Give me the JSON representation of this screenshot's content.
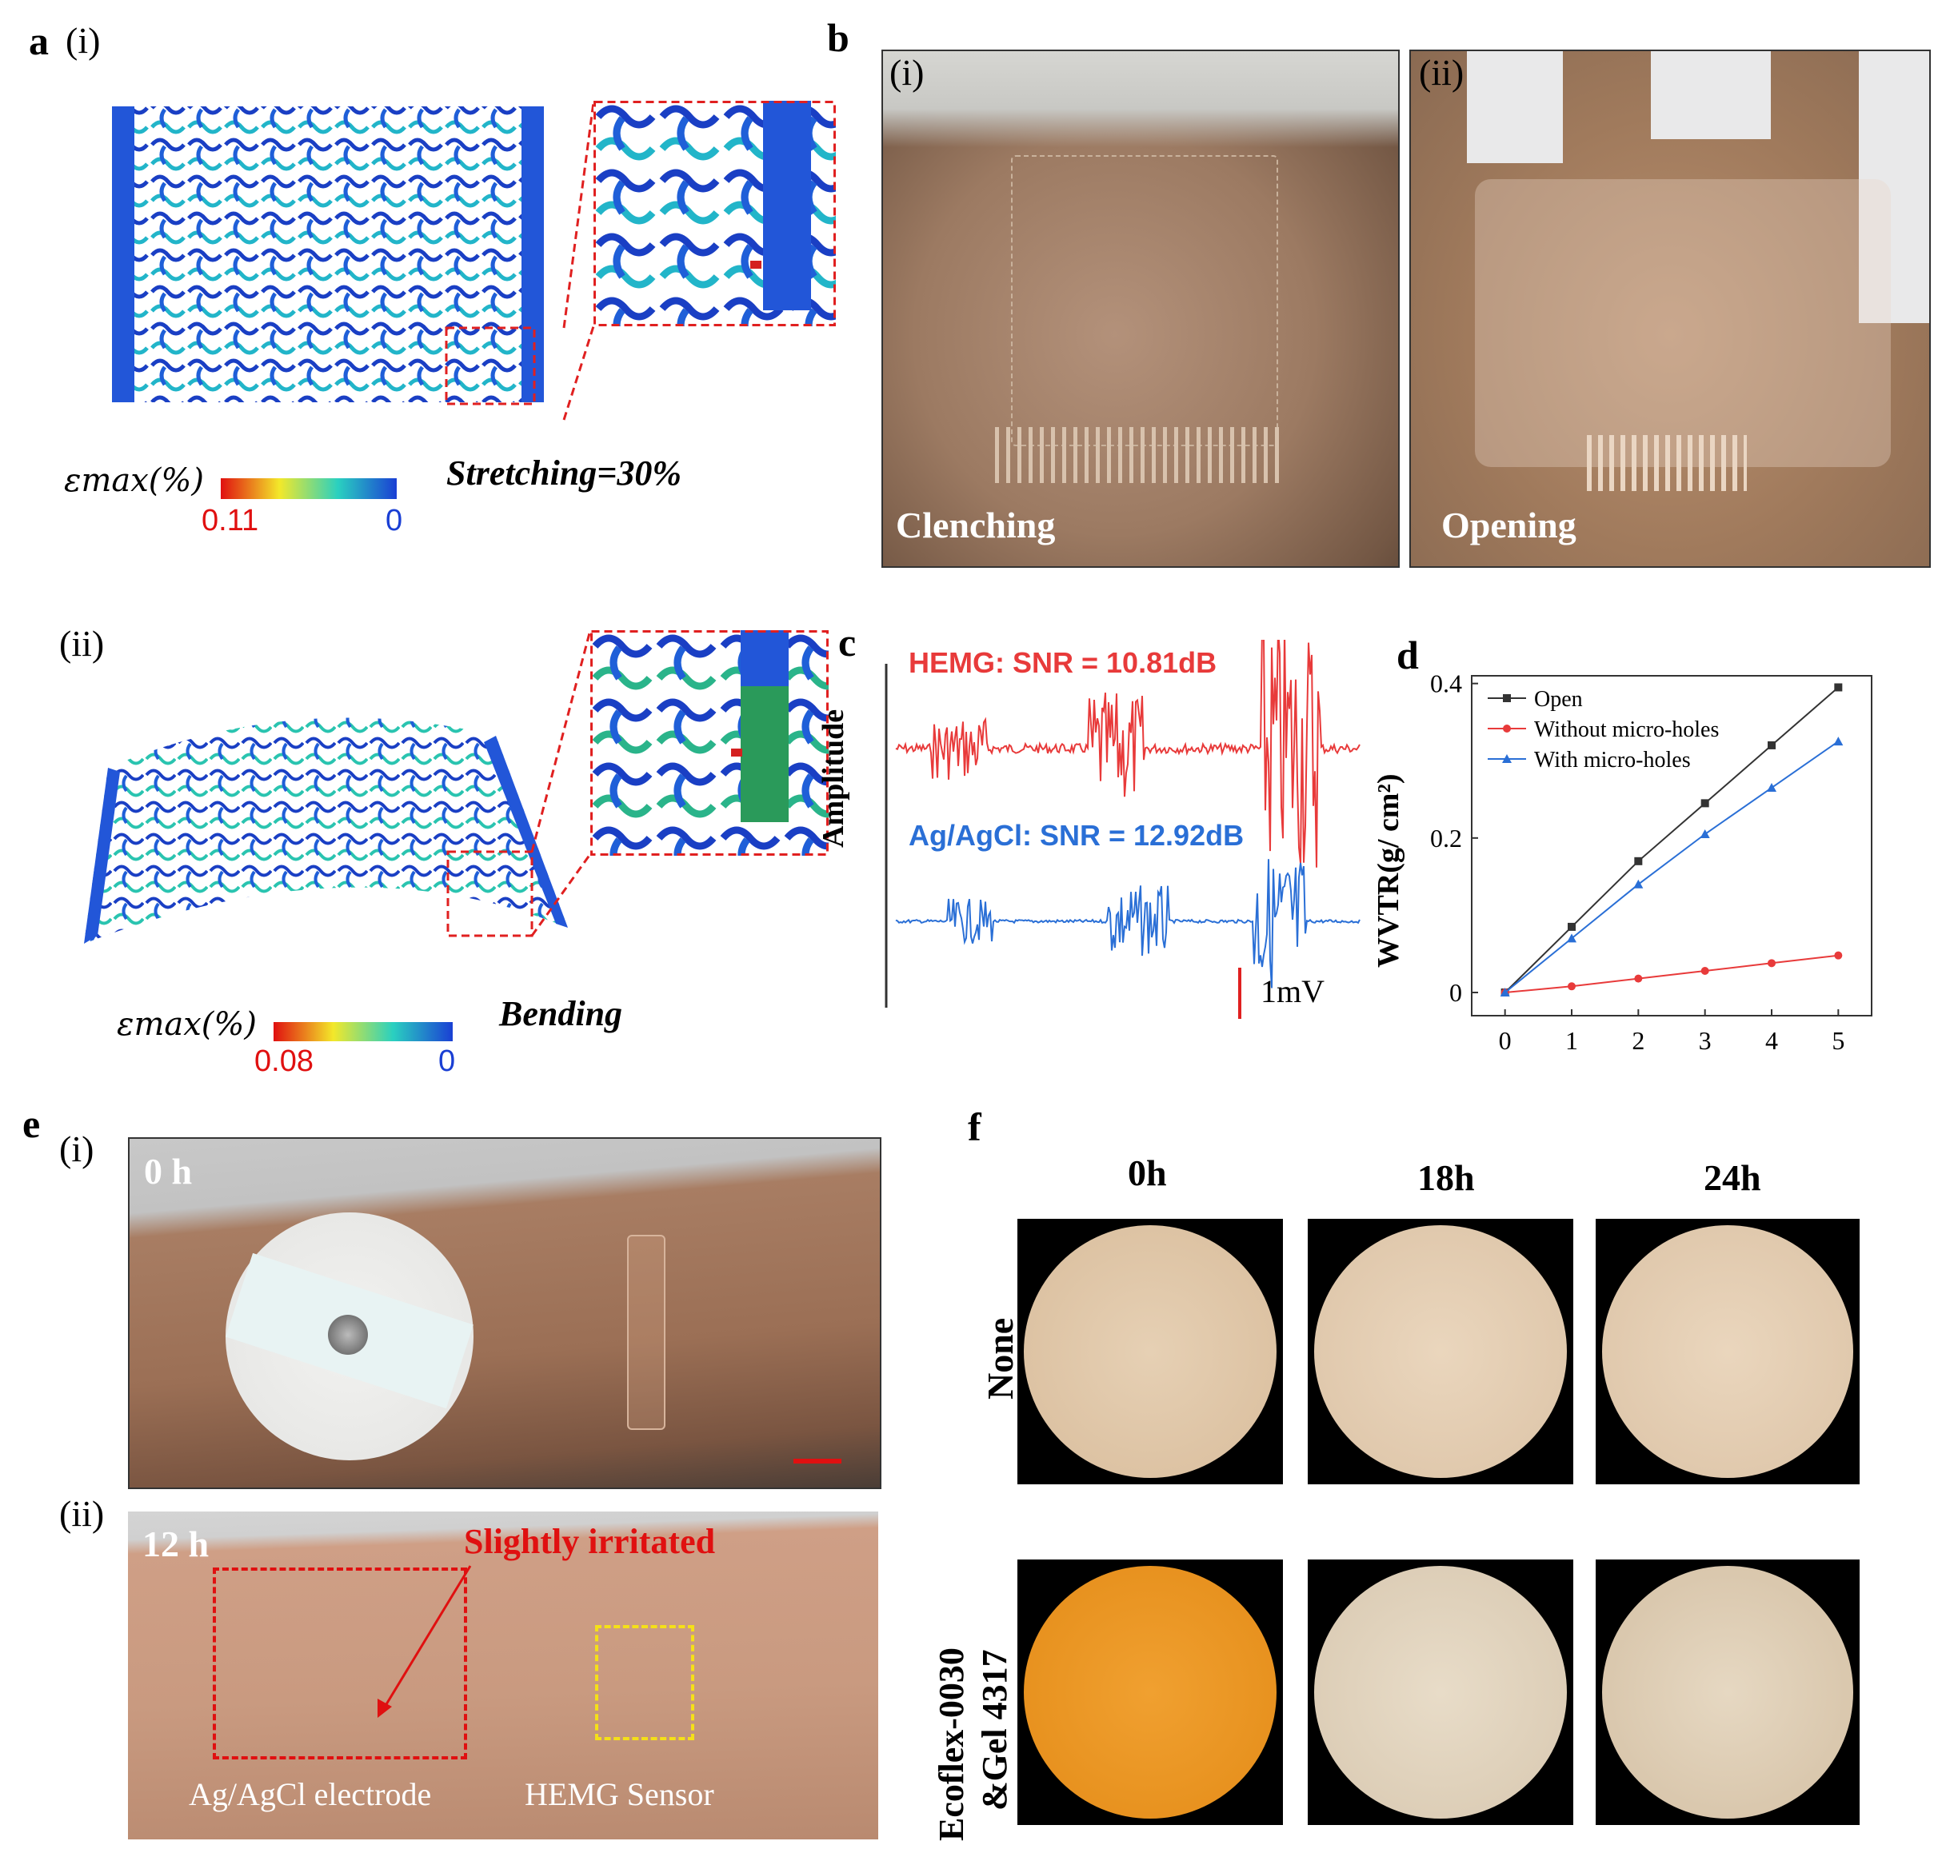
{
  "panels": {
    "a": {
      "letter": "a",
      "sub_i": "(i)",
      "sub_ii": "(ii)",
      "stretch_label": "Stretching=30%",
      "bend_label": "Bending",
      "eps_label": "εmax(%)",
      "cb1_max": "0.11",
      "cb1_min": "0",
      "cb2_max": "0.08",
      "cb2_min": "0"
    },
    "b": {
      "letter": "b",
      "sub_i": "(i)",
      "sub_ii": "(ii)",
      "label_i": "Clenching",
      "label_ii": "Opening"
    },
    "c": {
      "letter": "c",
      "ylabel": "Amplitude",
      "hemg_label": "HEMG:  SNR = 10.81dB",
      "agcl_label": "Ag/AgCl:  SNR = 12.92dB",
      "scale_label": "1mV",
      "hemg_color": "#e83a3a",
      "agcl_color": "#2a6fd6"
    },
    "e": {
      "letter": "e",
      "sub_i": "(i)",
      "sub_ii": "(ii)",
      "time_i": "0 h",
      "time_ii": "12 h",
      "irritated": "Slightly irritated",
      "agcl_electrode": "Ag/AgCl electrode",
      "hemg_sensor": "HEMG Sensor"
    },
    "f": {
      "letter": "f",
      "col_headers": [
        "0h",
        "18h",
        "24h"
      ],
      "row_none": "None",
      "row_eco_1": "Ecoflex-0030",
      "row_eco_2": "&Gel 4317"
    }
  },
  "chart_data": {
    "type": "line",
    "panel_letter": "d",
    "ylabel": "WVTR(g/ cm²)",
    "xlabel": "",
    "x": [
      0,
      1,
      2,
      3,
      4,
      5
    ],
    "xlim": [
      -0.5,
      5.5
    ],
    "ylim": [
      -0.03,
      0.41
    ],
    "yticks": [
      0,
      0.2,
      0.4
    ],
    "ytick_labels": [
      "0",
      "0.2",
      "0.4"
    ],
    "xticks": [
      0,
      1,
      2,
      3,
      4,
      5
    ],
    "legend_position": "top-left",
    "series": [
      {
        "name": "Open",
        "color": "#333333",
        "marker": "square",
        "values": [
          0,
          0.085,
          0.17,
          0.245,
          0.32,
          0.395
        ]
      },
      {
        "name": "Without micro-holes",
        "color": "#e83a3a",
        "marker": "circle",
        "values": [
          0,
          0.008,
          0.018,
          0.028,
          0.038,
          0.048
        ]
      },
      {
        "name": "With micro-holes",
        "color": "#2a6fd6",
        "marker": "triangle",
        "values": [
          0,
          0.07,
          0.14,
          0.205,
          0.265,
          0.325
        ]
      }
    ]
  }
}
